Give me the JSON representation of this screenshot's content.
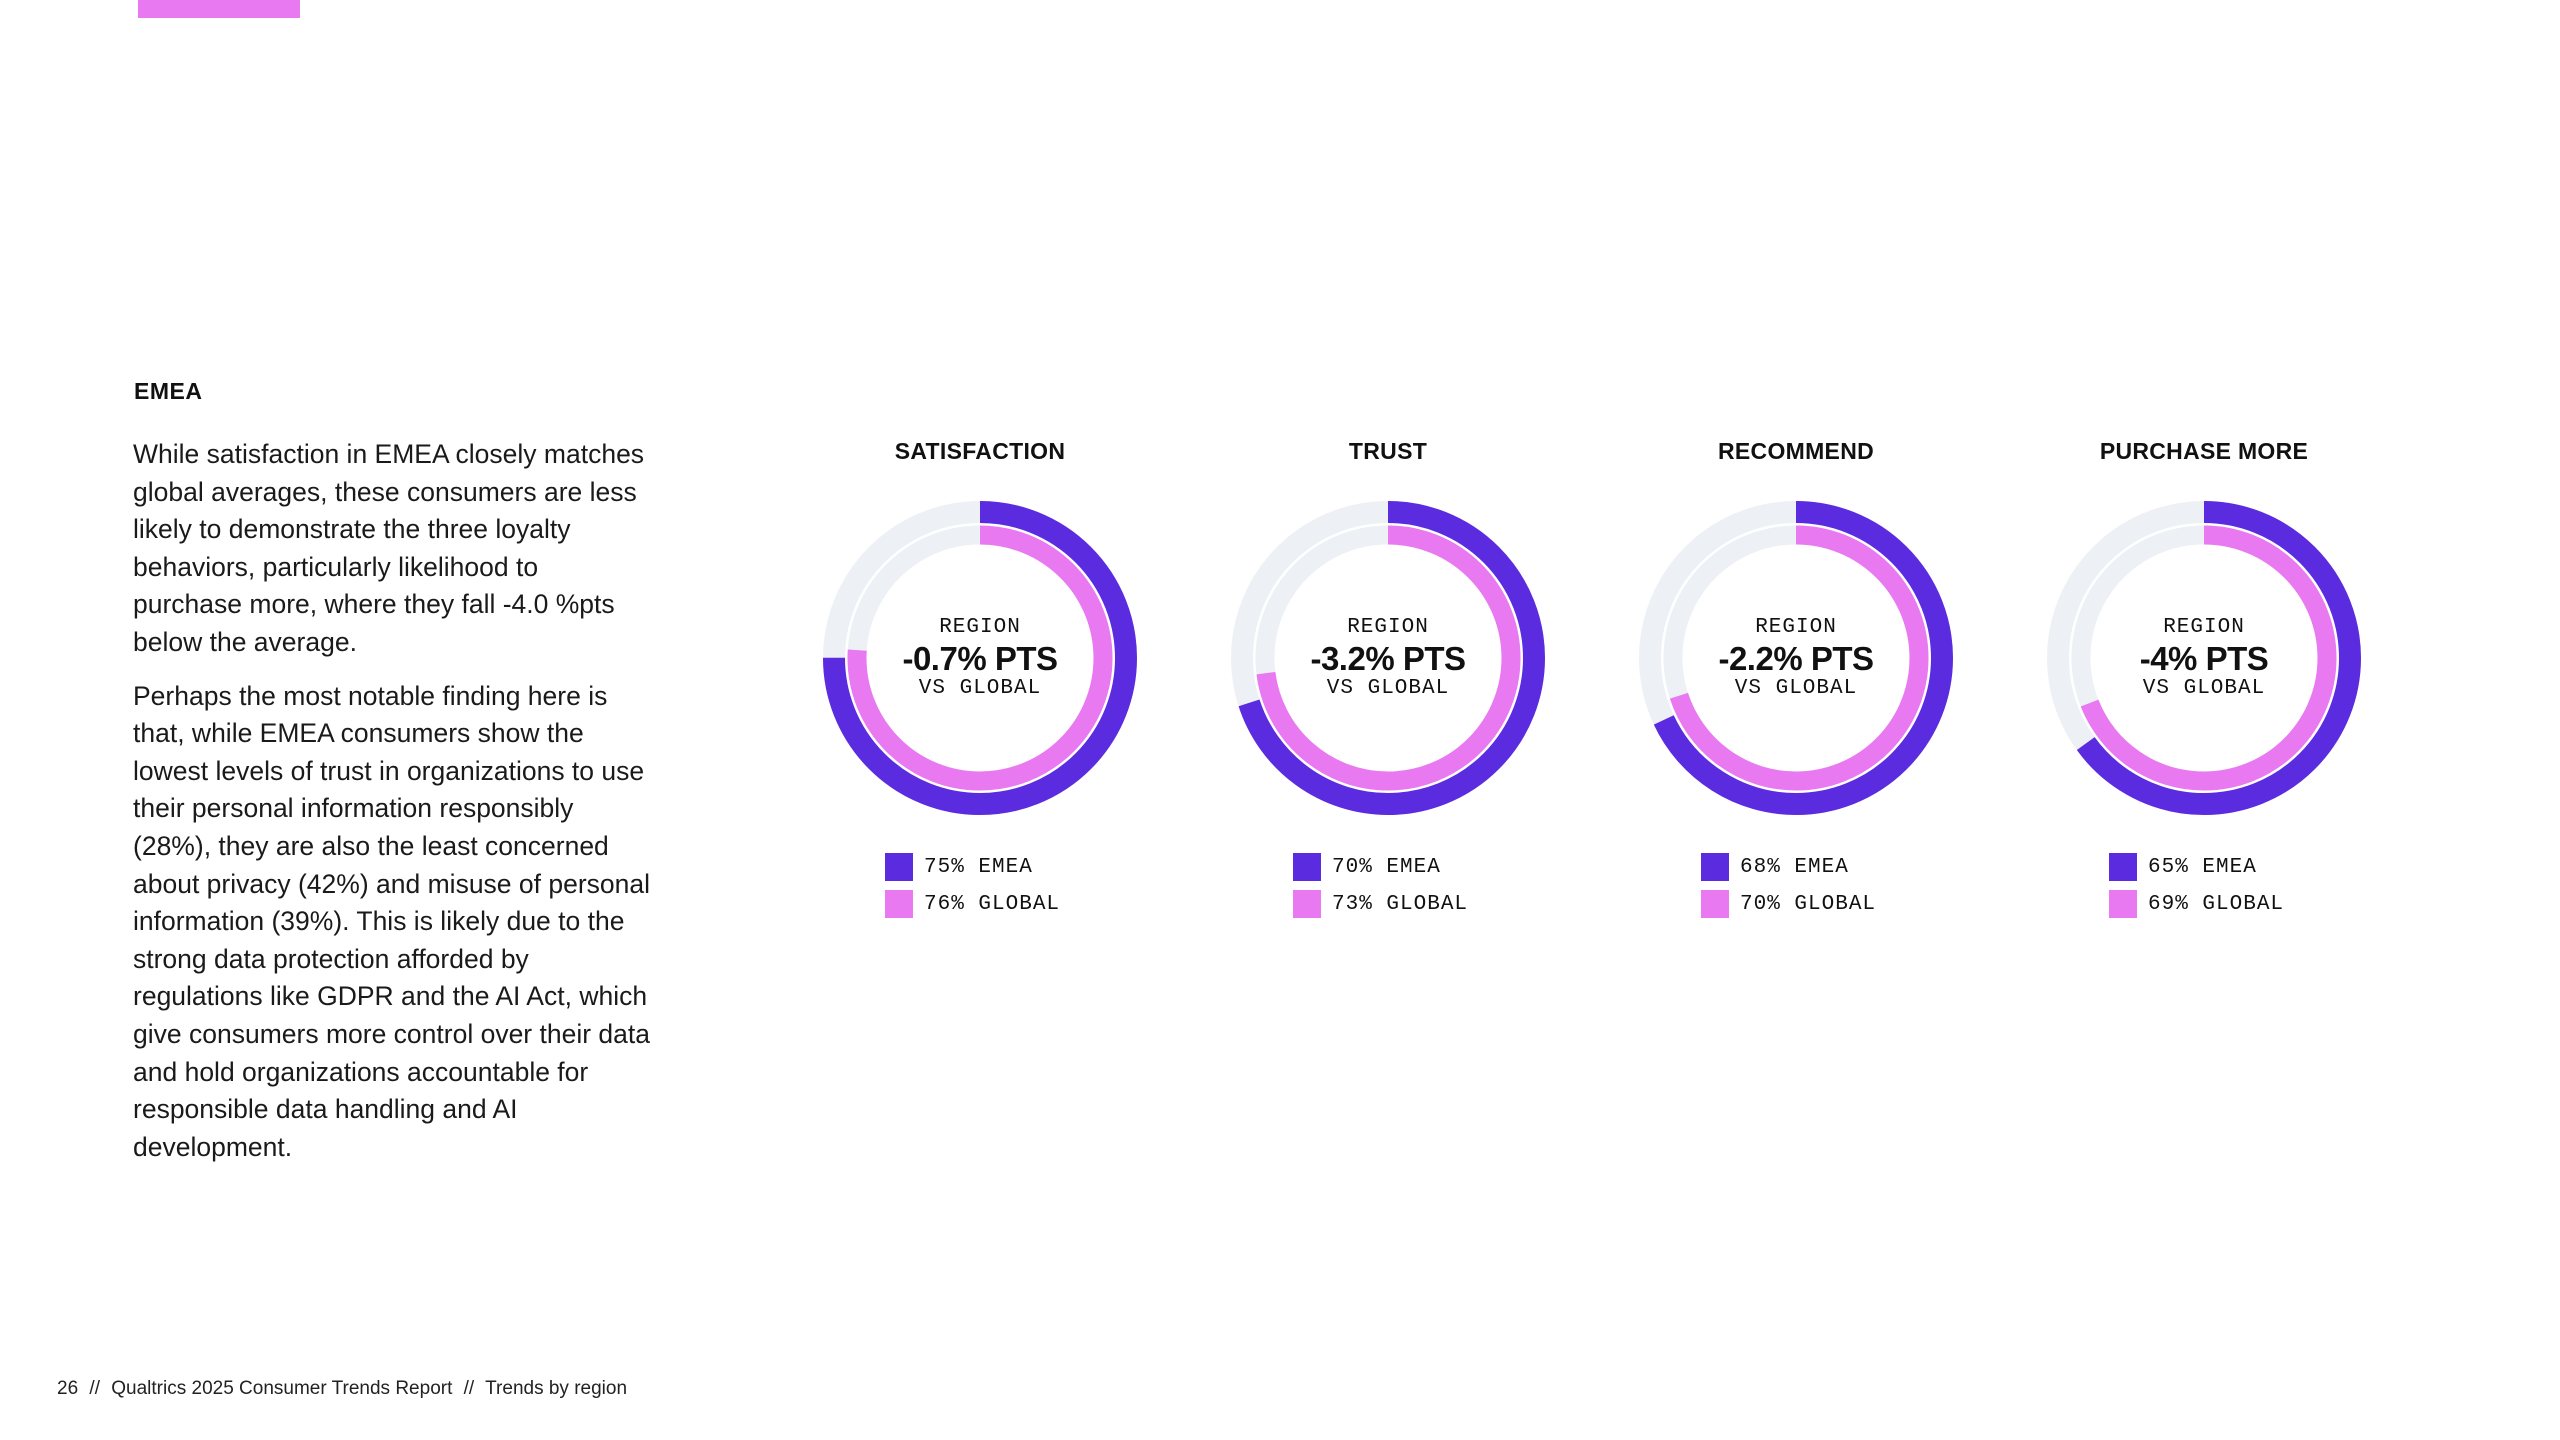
{
  "colors": {
    "region": "#5b2be0",
    "global": "#e879f0",
    "track": "#edf1f5",
    "accent_bar": "#e879f0"
  },
  "section": {
    "heading": "EMEA",
    "paragraphs": [
      "While satisfaction in EMEA closely matches global averages, these consumers are less likely to demonstrate the three loyalty behaviors, particularly likelihood to purchase more, where they fall -4.0 %pts below the average.",
      "Perhaps the most notable finding here is that, while EMEA consumers show the lowest levels of trust in organizations to use their personal information responsibly (28%), they are also the least concerned about privacy (42%) and misuse of personal information (39%). This is likely due to the strong data protection afforded by regulations like GDPR and the AI Act, which give consumers more control over their data and hold organizations accountable for responsible data handling and AI development."
    ]
  },
  "center_labels": {
    "top": "REGION",
    "bottom": "VS GLOBAL"
  },
  "chart_data": [
    {
      "type": "donut",
      "title": "SATISFACTION",
      "center_value": "-0.7% PTS",
      "series": [
        {
          "name": "EMEA",
          "value": 75,
          "label": "75% EMEA"
        },
        {
          "name": "GLOBAL",
          "value": 76,
          "label": "76% GLOBAL"
        }
      ]
    },
    {
      "type": "donut",
      "title": "TRUST",
      "center_value": "-3.2% PTS",
      "series": [
        {
          "name": "EMEA",
          "value": 70,
          "label": "70% EMEA"
        },
        {
          "name": "GLOBAL",
          "value": 73,
          "label": "73% GLOBAL"
        }
      ]
    },
    {
      "type": "donut",
      "title": "RECOMMEND",
      "center_value": "-2.2% PTS",
      "series": [
        {
          "name": "EMEA",
          "value": 68,
          "label": "68% EMEA"
        },
        {
          "name": "GLOBAL",
          "value": 70,
          "label": "70% GLOBAL"
        }
      ]
    },
    {
      "type": "donut",
      "title": "PURCHASE MORE",
      "center_value": "-4% PTS",
      "series": [
        {
          "name": "EMEA",
          "value": 65,
          "label": "65% EMEA"
        },
        {
          "name": "GLOBAL",
          "value": 69,
          "label": "69% GLOBAL"
        }
      ]
    }
  ],
  "footer": {
    "page_number": "26",
    "separator": "//",
    "report": "Qualtrics 2025 Consumer Trends Report",
    "section": "Trends by region"
  }
}
